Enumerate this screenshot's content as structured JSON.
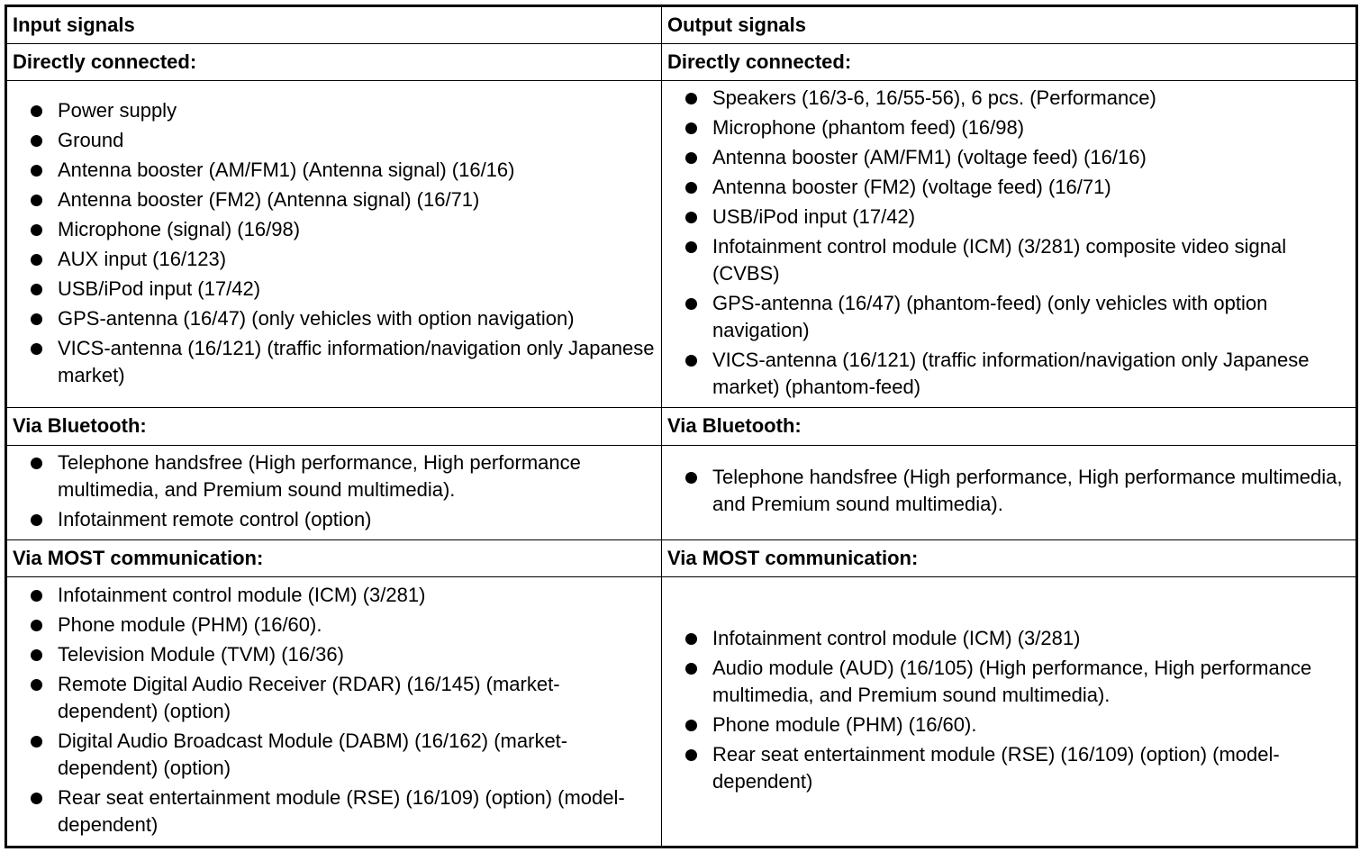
{
  "header": [
    "Input signals",
    "Output signals"
  ],
  "sections": [
    {
      "input": {
        "heading": "Directly connected:",
        "items": [
          "Power supply",
          "Ground",
          "Antenna booster (AM/FM1) (Antenna signal) (16/16)",
          "Antenna booster (FM2) (Antenna signal) (16/71)",
          "Microphone (signal) (16/98)",
          "AUX input (16/123)",
          "USB/iPod input (17/42)",
          "GPS-antenna (16/47) (only vehicles with option navigation)",
          "VICS-antenna (16/121) (traffic information/navigation only Japanese market)"
        ]
      },
      "output": {
        "heading": "Directly connected:",
        "items": [
          "Speakers (16/3-6, 16/55-56), 6 pcs. (Performance)",
          "Microphone (phantom feed) (16/98)",
          "Antenna booster (AM/FM1) (voltage feed) (16/16)",
          "Antenna booster (FM2) (voltage feed) (16/71)",
          "USB/iPod input (17/42)",
          "Infotainment control module (ICM) (3/281) composite video signal (CVBS)",
          "GPS-antenna (16/47) (phantom-feed) (only vehicles with option navigation)",
          "VICS-antenna (16/121) (traffic information/navigation only Japanese market) (phantom-feed)"
        ]
      }
    },
    {
      "input": {
        "heading": "Via Bluetooth:",
        "items": [
          "Telephone handsfree (High performance, High performance multimedia, and Premium sound multimedia).",
          "Infotainment remote control (option)"
        ]
      },
      "output": {
        "heading": "Via Bluetooth:",
        "items": [
          "Telephone handsfree (High performance, High performance multimedia, and Premium sound multimedia)."
        ]
      }
    },
    {
      "input": {
        "heading": "Via MOST communication:",
        "items": [
          "Infotainment control module (ICM) (3/281)",
          "Phone module (PHM) (16/60).",
          "Television Module (TVM) (16/36)",
          "Remote Digital Audio Receiver (RDAR) (16/145) (market-dependent) (option)",
          "Digital Audio Broadcast Module (DABM) (16/162) (market-dependent) (option)",
          "Rear seat entertainment module (RSE) (16/109) (option) (model-dependent)"
        ]
      },
      "output": {
        "heading": "Via MOST communication:",
        "items": [
          "Infotainment control module (ICM) (3/281)",
          "Audio module (AUD) (16/105) (High performance, High performance multimedia, and Premium sound multimedia).",
          "Phone module (PHM) (16/60).",
          "Rear seat entertainment module (RSE) (16/109) (option) (model-dependent)"
        ]
      }
    }
  ]
}
